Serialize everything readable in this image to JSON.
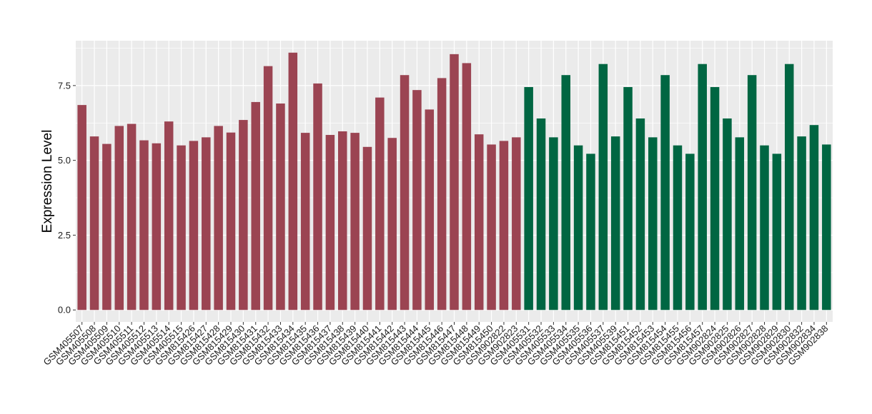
{
  "chart_data": {
    "type": "bar",
    "title": "",
    "xlabel": "",
    "ylabel": "Expression Level",
    "ylim": [
      -0.4,
      9.0
    ],
    "yticks": [
      0.0,
      2.5,
      5.0,
      7.5
    ],
    "ytick_labels": [
      "0.0",
      "2.5",
      "5.0",
      "7.5"
    ],
    "grid": true,
    "legend": "none",
    "panel_background": "#ebebeb",
    "grid_color": "#ffffff",
    "series": [
      {
        "color": "#9b4452",
        "categories": [
          "GSM405507",
          "GSM405508",
          "GSM405509",
          "GSM405510",
          "GSM405511",
          "GSM405512",
          "GSM405513",
          "GSM405514",
          "GSM405515",
          "GSM815426",
          "GSM815427",
          "GSM815428",
          "GSM815429",
          "GSM815430",
          "GSM815431",
          "GSM815432",
          "GSM815433",
          "GSM815434",
          "GSM815435",
          "GSM815436",
          "GSM815437",
          "GSM815438",
          "GSM815439",
          "GSM815440",
          "GSM815441",
          "GSM815442",
          "GSM815443",
          "GSM815444",
          "GSM815445",
          "GSM815446",
          "GSM815447",
          "GSM815448",
          "GSM815449",
          "GSM815450",
          "GSM902822",
          "GSM902823"
        ],
        "values": [
          6.85,
          5.8,
          5.55,
          6.15,
          6.22,
          5.67,
          5.57,
          6.3,
          5.5,
          5.65,
          5.77,
          6.15,
          5.93,
          6.35,
          6.95,
          8.15,
          6.9,
          8.6,
          5.92,
          7.57,
          5.85,
          5.97,
          5.92,
          5.45,
          7.1,
          5.75,
          7.85,
          7.35,
          6.7,
          7.75,
          8.55,
          8.25,
          5.87,
          5.53,
          5.65,
          5.77
        ]
      },
      {
        "color": "#006642",
        "categories": [
          "GSM405531",
          "GSM405532",
          "GSM405533",
          "GSM405534",
          "GSM405535",
          "GSM405536",
          "GSM405537",
          "GSM405539",
          "GSM815451",
          "GSM815452",
          "GSM815453",
          "GSM815454",
          "GSM815455",
          "GSM815456",
          "GSM815457",
          "GSM902824",
          "GSM902825",
          "GSM902826",
          "GSM902827",
          "GSM902828",
          "GSM902829",
          "GSM902830",
          "GSM902832",
          "GSM902834",
          "GSM902838"
        ],
        "values": [
          7.45,
          6.4,
          5.77,
          7.85,
          5.5,
          5.22,
          8.22,
          5.8,
          7.45,
          6.4,
          5.77,
          7.85,
          5.5,
          5.22,
          8.22,
          7.45,
          6.4,
          5.77,
          7.85,
          5.5,
          5.22,
          8.22,
          5.8,
          6.18,
          5.53
        ]
      }
    ]
  }
}
